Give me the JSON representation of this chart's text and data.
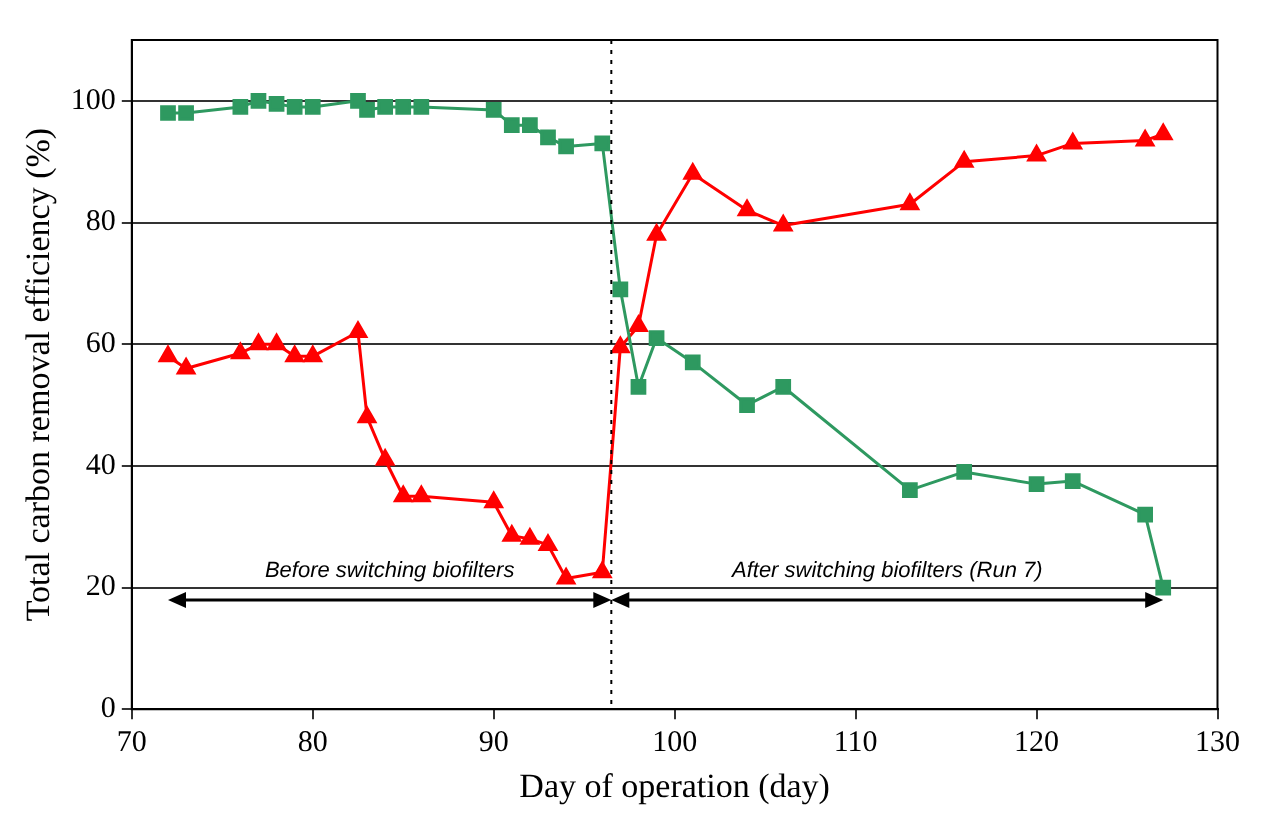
{
  "chart_data": {
    "type": "line",
    "xlabel": "Day of operation (day)",
    "ylabel": "Total carbon removal efficiency (%)",
    "xlim": [
      70,
      130
    ],
    "xticks": [
      70,
      80,
      90,
      100,
      110,
      120,
      130
    ],
    "ylim": [
      0,
      110
    ],
    "yticks": [
      0,
      20,
      40,
      60,
      80,
      100
    ],
    "grid": "y",
    "legend": false,
    "series": [
      {
        "color": "#2e9960",
        "marker": "square",
        "x": [
          72,
          73,
          76,
          77,
          78,
          79,
          80,
          82.5,
          83,
          84,
          85,
          86,
          90,
          91,
          92,
          93,
          94,
          96,
          97,
          98,
          99,
          101,
          104,
          106,
          113,
          116,
          120,
          122,
          126,
          127
        ],
        "values": [
          98,
          98,
          99,
          100,
          99.5,
          99,
          99,
          100,
          98.5,
          99,
          99,
          99,
          98.5,
          96,
          96,
          94,
          92.5,
          93,
          69,
          53,
          61,
          57,
          50,
          53,
          36,
          39,
          37,
          37.5,
          32,
          20
        ]
      },
      {
        "color": "#ff0000",
        "marker": "triangle",
        "x": [
          72,
          73,
          76,
          77,
          78,
          79,
          80,
          82.5,
          83,
          84,
          85,
          86,
          90,
          91,
          92,
          93,
          94,
          96,
          97,
          98,
          99,
          101,
          104,
          106,
          113,
          116,
          120,
          122,
          126,
          127
        ],
        "values": [
          58,
          56,
          58.5,
          60,
          60,
          58,
          58,
          62,
          48,
          41,
          35,
          35,
          34,
          28.5,
          28,
          27,
          21.5,
          22.5,
          59.5,
          63,
          78,
          88,
          82,
          79.5,
          83,
          90,
          91,
          93,
          93.5,
          94.5
        ]
      }
    ],
    "ref_lines": [
      {
        "axis": "x",
        "value": 96.5,
        "line_style": "dotted",
        "color": "#000000"
      }
    ],
    "annotations": [
      "Before switching biofilters",
      "After switching biofilters (Run 7)"
    ]
  }
}
